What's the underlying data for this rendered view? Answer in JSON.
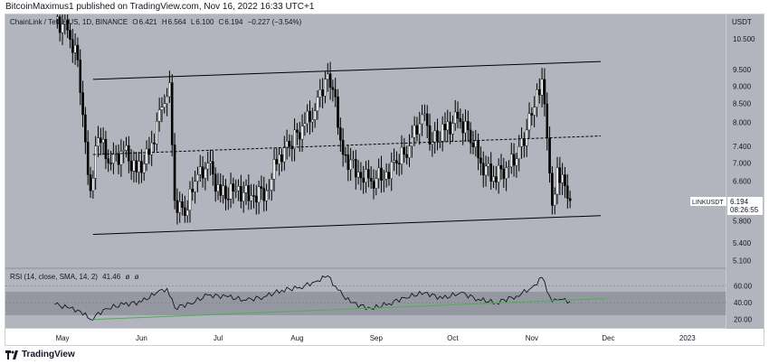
{
  "header": {
    "published": "BitcoinMaximus1 published on TradingView.com, Nov 16, 2022 16:33 UTC+1"
  },
  "footer": {
    "brand": "TradingView"
  },
  "legend": {
    "symbol": "ChainLink / TetherUS, 1D, BINANCE",
    "o_label": "O",
    "o": "6.421",
    "h_label": "H",
    "h": "6.564",
    "l_label": "L",
    "l": "6.100",
    "c_label": "C",
    "c": "6.194",
    "change": "−0.227 (−3.54%)"
  },
  "price_axis": {
    "currency": "USDT",
    "ticks": [
      "10.500",
      "9.500",
      "9.000",
      "8.500",
      "8.000",
      "7.400",
      "7.000",
      "6.600",
      "5.800",
      "5.400",
      "5.100"
    ],
    "last_label": "LINKUSDT",
    "last_price": "6.194",
    "countdown": "08:26:55"
  },
  "rsi_panel": {
    "legend": "RSI (14, close, SMA, 14, 2)",
    "value": "41.46",
    "na1": "ø",
    "na2": "ø",
    "ticks": [
      "60.00",
      "40.00",
      "20.00"
    ]
  },
  "time_axis": {
    "labels": [
      "May",
      "Jun",
      "Jul",
      "Aug",
      "Sep",
      "Oct",
      "Nov",
      "Dec",
      "2023"
    ]
  },
  "colors": {
    "background": "#b2b5be",
    "candle": "#ffffff",
    "wick": "#000000",
    "channel": "#000000",
    "support": "#4caf50"
  },
  "chart_data": {
    "type": "candlestick",
    "instrument": "LINK/USDT",
    "interval": "1D",
    "last_close": 6.194,
    "price_range": [
      5.0,
      11.3
    ],
    "candles": [
      {
        "date": "2022-04-28",
        "close": 11.2
      },
      {
        "date": "2022-05-03",
        "close": 10.8
      },
      {
        "date": "2022-05-07",
        "close": 9.8
      },
      {
        "date": "2022-05-10",
        "close": 7.5
      },
      {
        "date": "2022-05-12",
        "close": 6.4
      },
      {
        "date": "2022-05-15",
        "close": 7.6
      },
      {
        "date": "2022-05-20",
        "close": 7.0
      },
      {
        "date": "2022-05-25",
        "close": 7.3
      },
      {
        "date": "2022-05-30",
        "close": 6.8
      },
      {
        "date": "2022-06-04",
        "close": 7.2
      },
      {
        "date": "2022-06-09",
        "close": 8.4
      },
      {
        "date": "2022-06-12",
        "close": 9.1
      },
      {
        "date": "2022-06-14",
        "close": 6.2
      },
      {
        "date": "2022-06-18",
        "close": 5.9
      },
      {
        "date": "2022-06-22",
        "close": 6.6
      },
      {
        "date": "2022-06-27",
        "close": 7.0
      },
      {
        "date": "2022-07-02",
        "close": 6.3
      },
      {
        "date": "2022-07-08",
        "close": 6.4
      },
      {
        "date": "2022-07-14",
        "close": 6.3
      },
      {
        "date": "2022-07-20",
        "close": 6.4
      },
      {
        "date": "2022-07-25",
        "close": 7.2
      },
      {
        "date": "2022-07-29",
        "close": 7.4
      },
      {
        "date": "2022-08-03",
        "close": 7.9
      },
      {
        "date": "2022-08-08",
        "close": 8.3
      },
      {
        "date": "2022-08-12",
        "close": 9.2
      },
      {
        "date": "2022-08-15",
        "close": 8.9
      },
      {
        "date": "2022-08-19",
        "close": 7.2
      },
      {
        "date": "2022-08-25",
        "close": 6.8
      },
      {
        "date": "2022-08-30",
        "close": 6.6
      },
      {
        "date": "2022-09-05",
        "close": 6.8
      },
      {
        "date": "2022-09-09",
        "close": 7.0
      },
      {
        "date": "2022-09-14",
        "close": 7.4
      },
      {
        "date": "2022-09-19",
        "close": 8.2
      },
      {
        "date": "2022-09-23",
        "close": 7.5
      },
      {
        "date": "2022-09-28",
        "close": 7.8
      },
      {
        "date": "2022-10-03",
        "close": 8.1
      },
      {
        "date": "2022-10-07",
        "close": 7.8
      },
      {
        "date": "2022-10-12",
        "close": 7.0
      },
      {
        "date": "2022-10-17",
        "close": 6.7
      },
      {
        "date": "2022-10-22",
        "close": 6.9
      },
      {
        "date": "2022-10-26",
        "close": 7.1
      },
      {
        "date": "2022-10-30",
        "close": 7.8
      },
      {
        "date": "2022-11-02",
        "close": 8.4
      },
      {
        "date": "2022-11-05",
        "close": 9.2
      },
      {
        "date": "2022-11-07",
        "close": 7.6
      },
      {
        "date": "2022-11-09",
        "close": 6.1
      },
      {
        "date": "2022-11-11",
        "close": 6.9
      },
      {
        "date": "2022-11-14",
        "close": 6.5
      },
      {
        "date": "2022-11-16",
        "close": 6.194
      }
    ],
    "channel": {
      "upper": [
        {
          "date": "2022-05-13",
          "price": 9.2
        },
        {
          "date": "2022-11-28",
          "price": 9.75
        }
      ],
      "lower": [
        {
          "date": "2022-05-13",
          "price": 5.55
        },
        {
          "date": "2022-11-28",
          "price": 5.9
        }
      ],
      "midline": [
        {
          "date": "2022-05-13",
          "price": 7.2
        },
        {
          "date": "2022-11-28",
          "price": 7.65
        }
      ]
    },
    "rsi": {
      "range": [
        10,
        80
      ],
      "points": [
        {
          "date": "2022-04-28",
          "value": 38
        },
        {
          "date": "2022-05-03",
          "value": 34
        },
        {
          "date": "2022-05-08",
          "value": 30
        },
        {
          "date": "2022-05-12",
          "value": 20
        },
        {
          "date": "2022-05-18",
          "value": 33
        },
        {
          "date": "2022-05-25",
          "value": 38
        },
        {
          "date": "2022-06-01",
          "value": 41
        },
        {
          "date": "2022-06-07",
          "value": 52
        },
        {
          "date": "2022-06-11",
          "value": 57
        },
        {
          "date": "2022-06-14",
          "value": 34
        },
        {
          "date": "2022-06-20",
          "value": 39
        },
        {
          "date": "2022-06-27",
          "value": 49
        },
        {
          "date": "2022-07-05",
          "value": 47
        },
        {
          "date": "2022-07-12",
          "value": 43
        },
        {
          "date": "2022-07-19",
          "value": 47
        },
        {
          "date": "2022-07-26",
          "value": 55
        },
        {
          "date": "2022-08-02",
          "value": 58
        },
        {
          "date": "2022-08-08",
          "value": 65
        },
        {
          "date": "2022-08-13",
          "value": 72
        },
        {
          "date": "2022-08-17",
          "value": 55
        },
        {
          "date": "2022-08-22",
          "value": 40
        },
        {
          "date": "2022-08-30",
          "value": 33
        },
        {
          "date": "2022-09-06",
          "value": 39
        },
        {
          "date": "2022-09-12",
          "value": 46
        },
        {
          "date": "2022-09-20",
          "value": 52
        },
        {
          "date": "2022-09-27",
          "value": 45
        },
        {
          "date": "2022-10-04",
          "value": 52
        },
        {
          "date": "2022-10-11",
          "value": 44
        },
        {
          "date": "2022-10-18",
          "value": 40
        },
        {
          "date": "2022-10-26",
          "value": 48
        },
        {
          "date": "2022-11-01",
          "value": 58
        },
        {
          "date": "2022-11-05",
          "value": 70
        },
        {
          "date": "2022-11-09",
          "value": 41
        },
        {
          "date": "2022-11-12",
          "value": 44
        },
        {
          "date": "2022-11-16",
          "value": 41.46
        }
      ],
      "support_line": [
        {
          "date": "2022-05-13",
          "value": 20
        },
        {
          "date": "2022-11-30",
          "value": 45
        }
      ]
    }
  }
}
